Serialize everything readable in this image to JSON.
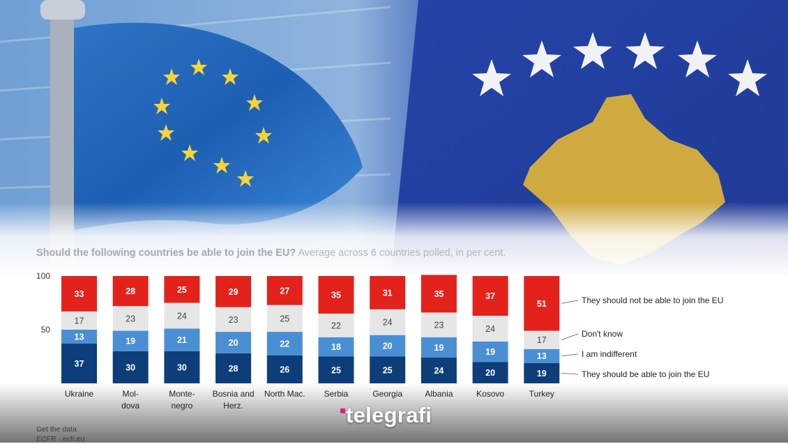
{
  "header": {
    "title_bold": "Should the following countries be able to join the EU?",
    "title_rest": " Average across 6 countries polled, in per cent."
  },
  "chart_data": {
    "type": "bar",
    "stacked": true,
    "categories": [
      [
        "Ukraine"
      ],
      [
        "Mol-",
        "dova"
      ],
      [
        "Monte-",
        "negro"
      ],
      [
        "Bosnia and",
        "Herz."
      ],
      [
        "North Mac."
      ],
      [
        "Serbia"
      ],
      [
        "Georgia"
      ],
      [
        "Albania"
      ],
      [
        "Kosovo"
      ],
      [
        "Turkey"
      ]
    ],
    "series": [
      {
        "name": "They should be able to join the EU",
        "color": "#0d3e7a",
        "values": [
          37,
          30,
          30,
          28,
          26,
          25,
          25,
          24,
          20,
          19
        ]
      },
      {
        "name": "I am indifferent",
        "color": "#4a8fd4",
        "values": [
          13,
          19,
          21,
          20,
          22,
          18,
          20,
          19,
          19,
          13
        ]
      },
      {
        "name": "Don't know",
        "color": "#e6e6e6",
        "values": [
          17,
          23,
          24,
          23,
          25,
          22,
          24,
          23,
          24,
          17
        ]
      },
      {
        "name": "They should not be able to join the EU",
        "color": "#e3221c",
        "values": [
          33,
          28,
          25,
          29,
          27,
          35,
          31,
          35,
          37,
          51
        ]
      }
    ],
    "yticks": [
      50,
      100
    ],
    "ylim": [
      0,
      100
    ],
    "legend_position": "right"
  },
  "footer": {
    "line1": "Get the data",
    "line2": "ECFR · ecfr.eu"
  },
  "brand": {
    "name": "telegrafi",
    "accent": "#e6197c"
  }
}
